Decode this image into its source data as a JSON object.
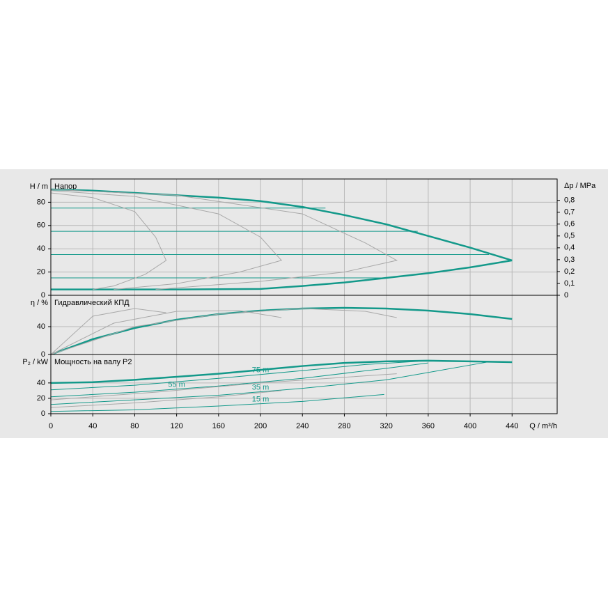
{
  "chart_data": [
    {
      "type": "line",
      "title": "Напор",
      "ylabel": "H / m",
      "y2label": "Δp / MPa",
      "ylim": [
        0,
        100
      ],
      "yticks": [
        0,
        20,
        40,
        60,
        80
      ],
      "y2lim": [
        0,
        0.98
      ],
      "y2ticks": [
        0,
        {
          "value": 0.1,
          "label": "0,1"
        },
        {
          "value": 0.2,
          "label": "0,2"
        },
        {
          "value": 0.3,
          "label": "0,3"
        },
        {
          "value": 0.4,
          "label": "0,4"
        },
        {
          "value": 0.5,
          "label": "0,5"
        },
        {
          "value": 0.6,
          "label": "0,6"
        },
        {
          "value": 0.7,
          "label": "0,7"
        },
        {
          "value": 0.8,
          "label": "0,8"
        }
      ],
      "grid": true,
      "series": [
        {
          "color": "#13998a",
          "x": [
            0,
            40,
            80,
            120,
            160,
            200,
            240,
            280,
            320,
            360,
            400,
            440
          ],
          "values": [
            91,
            90,
            88,
            86,
            84,
            81,
            76,
            69,
            61,
            51,
            41,
            30
          ]
        },
        {
          "color": "#13998a",
          "x": [
            0,
            120,
            200,
            240,
            280,
            320,
            360,
            400,
            440
          ],
          "values": [
            5,
            5,
            5.5,
            8,
            11,
            15,
            19,
            24,
            30
          ]
        },
        {
          "color": "#13998a",
          "x": [
            0,
            262
          ],
          "values": [
            75,
            75
          ]
        },
        {
          "color": "#13998a",
          "x": [
            0,
            350
          ],
          "values": [
            55,
            55
          ]
        },
        {
          "color": "#13998a",
          "x": [
            0,
            418
          ],
          "values": [
            35,
            35
          ]
        },
        {
          "color": "#13998a",
          "x": [
            0,
            320
          ],
          "values": [
            15,
            15
          ]
        },
        {
          "color": "#a8a8a8",
          "x": [
            0,
            40,
            80,
            100,
            110,
            90,
            60,
            40
          ],
          "values": [
            88,
            84,
            72,
            50,
            30,
            18,
            8,
            5
          ]
        },
        {
          "color": "#a8a8a8",
          "x": [
            0,
            80,
            160,
            200,
            220,
            180,
            120,
            60
          ],
          "values": [
            90,
            85,
            70,
            50,
            30,
            20,
            10,
            5
          ]
        },
        {
          "color": "#a8a8a8",
          "x": [
            0,
            120,
            240,
            300,
            330,
            280,
            200,
            100
          ],
          "values": [
            91,
            86,
            70,
            45,
            30,
            20,
            12,
            5
          ]
        }
      ]
    },
    {
      "type": "line",
      "title": "Гидравлический КПД",
      "ylabel": "η / %",
      "ylim": [
        0,
        85
      ],
      "yticks": [
        0,
        40
      ],
      "grid": true,
      "series": [
        {
          "color": "#13998a",
          "x": [
            0,
            40,
            80,
            120,
            160,
            200,
            240,
            280,
            320,
            360,
            400,
            440
          ],
          "values": [
            0,
            22,
            38,
            50,
            58,
            63,
            66,
            67,
            66,
            63,
            58,
            51
          ]
        },
        {
          "color": "#a8a8a8",
          "x": [
            0,
            40,
            80,
            110
          ],
          "values": [
            0,
            55,
            66,
            60
          ]
        },
        {
          "color": "#a8a8a8",
          "x": [
            0,
            60,
            120,
            180,
            220
          ],
          "values": [
            0,
            45,
            62,
            63,
            53
          ]
        },
        {
          "color": "#a8a8a8",
          "x": [
            0,
            80,
            160,
            240,
            300,
            330
          ],
          "values": [
            0,
            40,
            58,
            66,
            62,
            53
          ]
        }
      ]
    },
    {
      "type": "line",
      "title": "Мощность на валу P2",
      "ylabel": "P₂ / kW",
      "xlabel": "Q / m³/h",
      "ylim": [
        0,
        77
      ],
      "yticks": [
        0,
        20,
        40
      ],
      "xlim": [
        0,
        483
      ],
      "xticks": [
        0,
        40,
        80,
        120,
        160,
        200,
        240,
        280,
        320,
        360,
        400,
        440
      ],
      "grid": true,
      "series": [
        {
          "color": "#13998a",
          "x": [
            0,
            40,
            80,
            120,
            160,
            200,
            240,
            280,
            320,
            360,
            400,
            440
          ],
          "values": [
            40,
            41,
            44,
            48,
            52,
            57,
            62,
            66,
            68,
            69,
            68,
            67
          ]
        },
        {
          "name": "75 m",
          "color": "#13998a",
          "x": [
            0,
            80,
            160,
            240,
            300,
            350
          ],
          "values": [
            31,
            37,
            46,
            56,
            64,
            68
          ]
        },
        {
          "name": "55 m",
          "color": "#13998a",
          "x": [
            0,
            80,
            160,
            240,
            320,
            360
          ],
          "values": [
            22,
            28,
            36,
            46,
            59,
            66
          ]
        },
        {
          "name": "35 m",
          "color": "#13998a",
          "x": [
            0,
            80,
            160,
            240,
            320,
            420
          ],
          "values": [
            12,
            18,
            24,
            33,
            44,
            68
          ]
        },
        {
          "name": "15 m",
          "color": "#13998a",
          "x": [
            0,
            80,
            160,
            240,
            318
          ],
          "values": [
            3,
            5,
            10,
            16,
            25
          ]
        },
        {
          "color": "#a8a8a8",
          "x": [
            0,
            100,
            200,
            330
          ],
          "values": [
            18,
            28,
            40,
            52
          ]
        },
        {
          "color": "#a8a8a8",
          "x": [
            0,
            80,
            160,
            220
          ],
          "values": [
            8,
            14,
            22,
            30
          ]
        }
      ]
    }
  ]
}
